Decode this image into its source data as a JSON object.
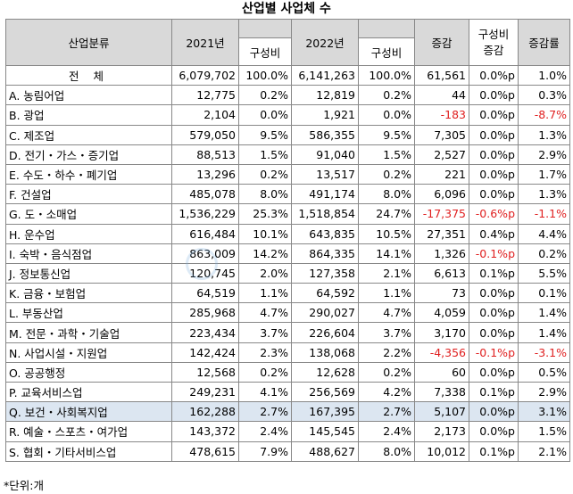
{
  "title": "산업별 사업체 수",
  "headers": {
    "category": "산업분류",
    "y2021": "2021년",
    "share2021": "구성비",
    "y2022": "2022년",
    "share2022": "구성비",
    "change": "증감",
    "share_change": "구성비 증감",
    "rate": "증감률"
  },
  "rows": [
    {
      "name": "전 체",
      "v2021": "6,079,702",
      "s2021": "100.0%",
      "v2022": "6,141,263",
      "s2022": "100.0%",
      "chg": "61,561",
      "schg": "0.0%p",
      "rate": "1.0%"
    },
    {
      "name": "A. 농림어업",
      "v2021": "12,775",
      "s2021": "0.2%",
      "v2022": "12,819",
      "s2022": "0.2%",
      "chg": "44",
      "schg": "0.0%p",
      "rate": "0.3%"
    },
    {
      "name": "B. 광업",
      "v2021": "2,104",
      "s2021": "0.0%",
      "v2022": "1,921",
      "s2022": "0.0%",
      "chg": "-183",
      "schg": "0.0%p",
      "rate": "-8.7%"
    },
    {
      "name": "C. 제조업",
      "v2021": "579,050",
      "s2021": "9.5%",
      "v2022": "586,355",
      "s2022": "9.5%",
      "chg": "7,305",
      "schg": "0.0%p",
      "rate": "1.3%"
    },
    {
      "name": "D. 전기・가스・증기업",
      "v2021": "88,513",
      "s2021": "1.5%",
      "v2022": "91,040",
      "s2022": "1.5%",
      "chg": "2,527",
      "schg": "0.0%p",
      "rate": "2.9%"
    },
    {
      "name": "E. 수도・하수・폐기업",
      "v2021": "13,296",
      "s2021": "0.2%",
      "v2022": "13,517",
      "s2022": "0.2%",
      "chg": "221",
      "schg": "0.0%p",
      "rate": "1.7%"
    },
    {
      "name": "F. 건설업",
      "v2021": "485,078",
      "s2021": "8.0%",
      "v2022": "491,174",
      "s2022": "8.0%",
      "chg": "6,096",
      "schg": "0.0%p",
      "rate": "1.3%"
    },
    {
      "name": "G. 도・소매업",
      "v2021": "1,536,229",
      "s2021": "25.3%",
      "v2022": "1,518,854",
      "s2022": "24.7%",
      "chg": "-17,375",
      "schg": "-0.6%p",
      "rate": "-1.1%"
    },
    {
      "name": "H. 운수업",
      "v2021": "616,484",
      "s2021": "10.1%",
      "v2022": "643,835",
      "s2022": "10.5%",
      "chg": "27,351",
      "schg": "0.4%p",
      "rate": "4.4%"
    },
    {
      "name": "I. 숙박・음식점업",
      "v2021": "863,009",
      "s2021": "14.2%",
      "v2022": "864,335",
      "s2022": "14.1%",
      "chg": "1,326",
      "schg": "-0.1%p",
      "rate": "0.2%"
    },
    {
      "name": "J. 정보통신업",
      "v2021": "120,745",
      "s2021": "2.0%",
      "v2022": "127,358",
      "s2022": "2.1%",
      "chg": "6,613",
      "schg": "0.1%p",
      "rate": "5.5%"
    },
    {
      "name": "K. 금융・보험업",
      "v2021": "64,519",
      "s2021": "1.1%",
      "v2022": "64,592",
      "s2022": "1.1%",
      "chg": "73",
      "schg": "0.0%p",
      "rate": "0.1%"
    },
    {
      "name": "L. 부동산업",
      "v2021": "285,968",
      "s2021": "4.7%",
      "v2022": "290,027",
      "s2022": "4.7%",
      "chg": "4,059",
      "schg": "0.0%p",
      "rate": "1.4%"
    },
    {
      "name": "M. 전문・과학・기술업",
      "v2021": "223,434",
      "s2021": "3.7%",
      "v2022": "226,604",
      "s2022": "3.7%",
      "chg": "3,170",
      "schg": "0.0%p",
      "rate": "1.4%"
    },
    {
      "name": "N. 사업시설・지원업",
      "v2021": "142,424",
      "s2021": "2.3%",
      "v2022": "138,068",
      "s2022": "2.2%",
      "chg": "-4,356",
      "schg": "-0.1%p",
      "rate": "-3.1%"
    },
    {
      "name": "O. 공공행정",
      "v2021": "12,568",
      "s2021": "0.2%",
      "v2022": "12,628",
      "s2022": "0.2%",
      "chg": "60",
      "schg": "0.0%p",
      "rate": "0.5%"
    },
    {
      "name": "P. 교육서비스업",
      "v2021": "249,231",
      "s2021": "4.1%",
      "v2022": "256,569",
      "s2022": "4.2%",
      "chg": "7,338",
      "schg": "0.1%p",
      "rate": "2.9%"
    },
    {
      "name": "Q. 보건・사회복지업",
      "v2021": "162,288",
      "s2021": "2.7%",
      "v2022": "167,395",
      "s2022": "2.7%",
      "chg": "5,107",
      "schg": "0.0%p",
      "rate": "3.1%"
    },
    {
      "name": "R. 예술・스포츠・여가업",
      "v2021": "143,372",
      "s2021": "2.4%",
      "v2022": "145,545",
      "s2022": "2.4%",
      "chg": "2,173",
      "schg": "0.0%p",
      "rate": "1.5%"
    },
    {
      "name": "S. 협회・기타서비스업",
      "v2021": "478,615",
      "s2021": "7.9%",
      "v2022": "488,627",
      "s2022": "8.0%",
      "chg": "10,012",
      "schg": "0.1%p",
      "rate": "2.1%"
    }
  ],
  "highlight_row_index": 17,
  "negative_color": "#e02020",
  "highlight_color": "#dce6f1",
  "footer_note": "*단위:개"
}
